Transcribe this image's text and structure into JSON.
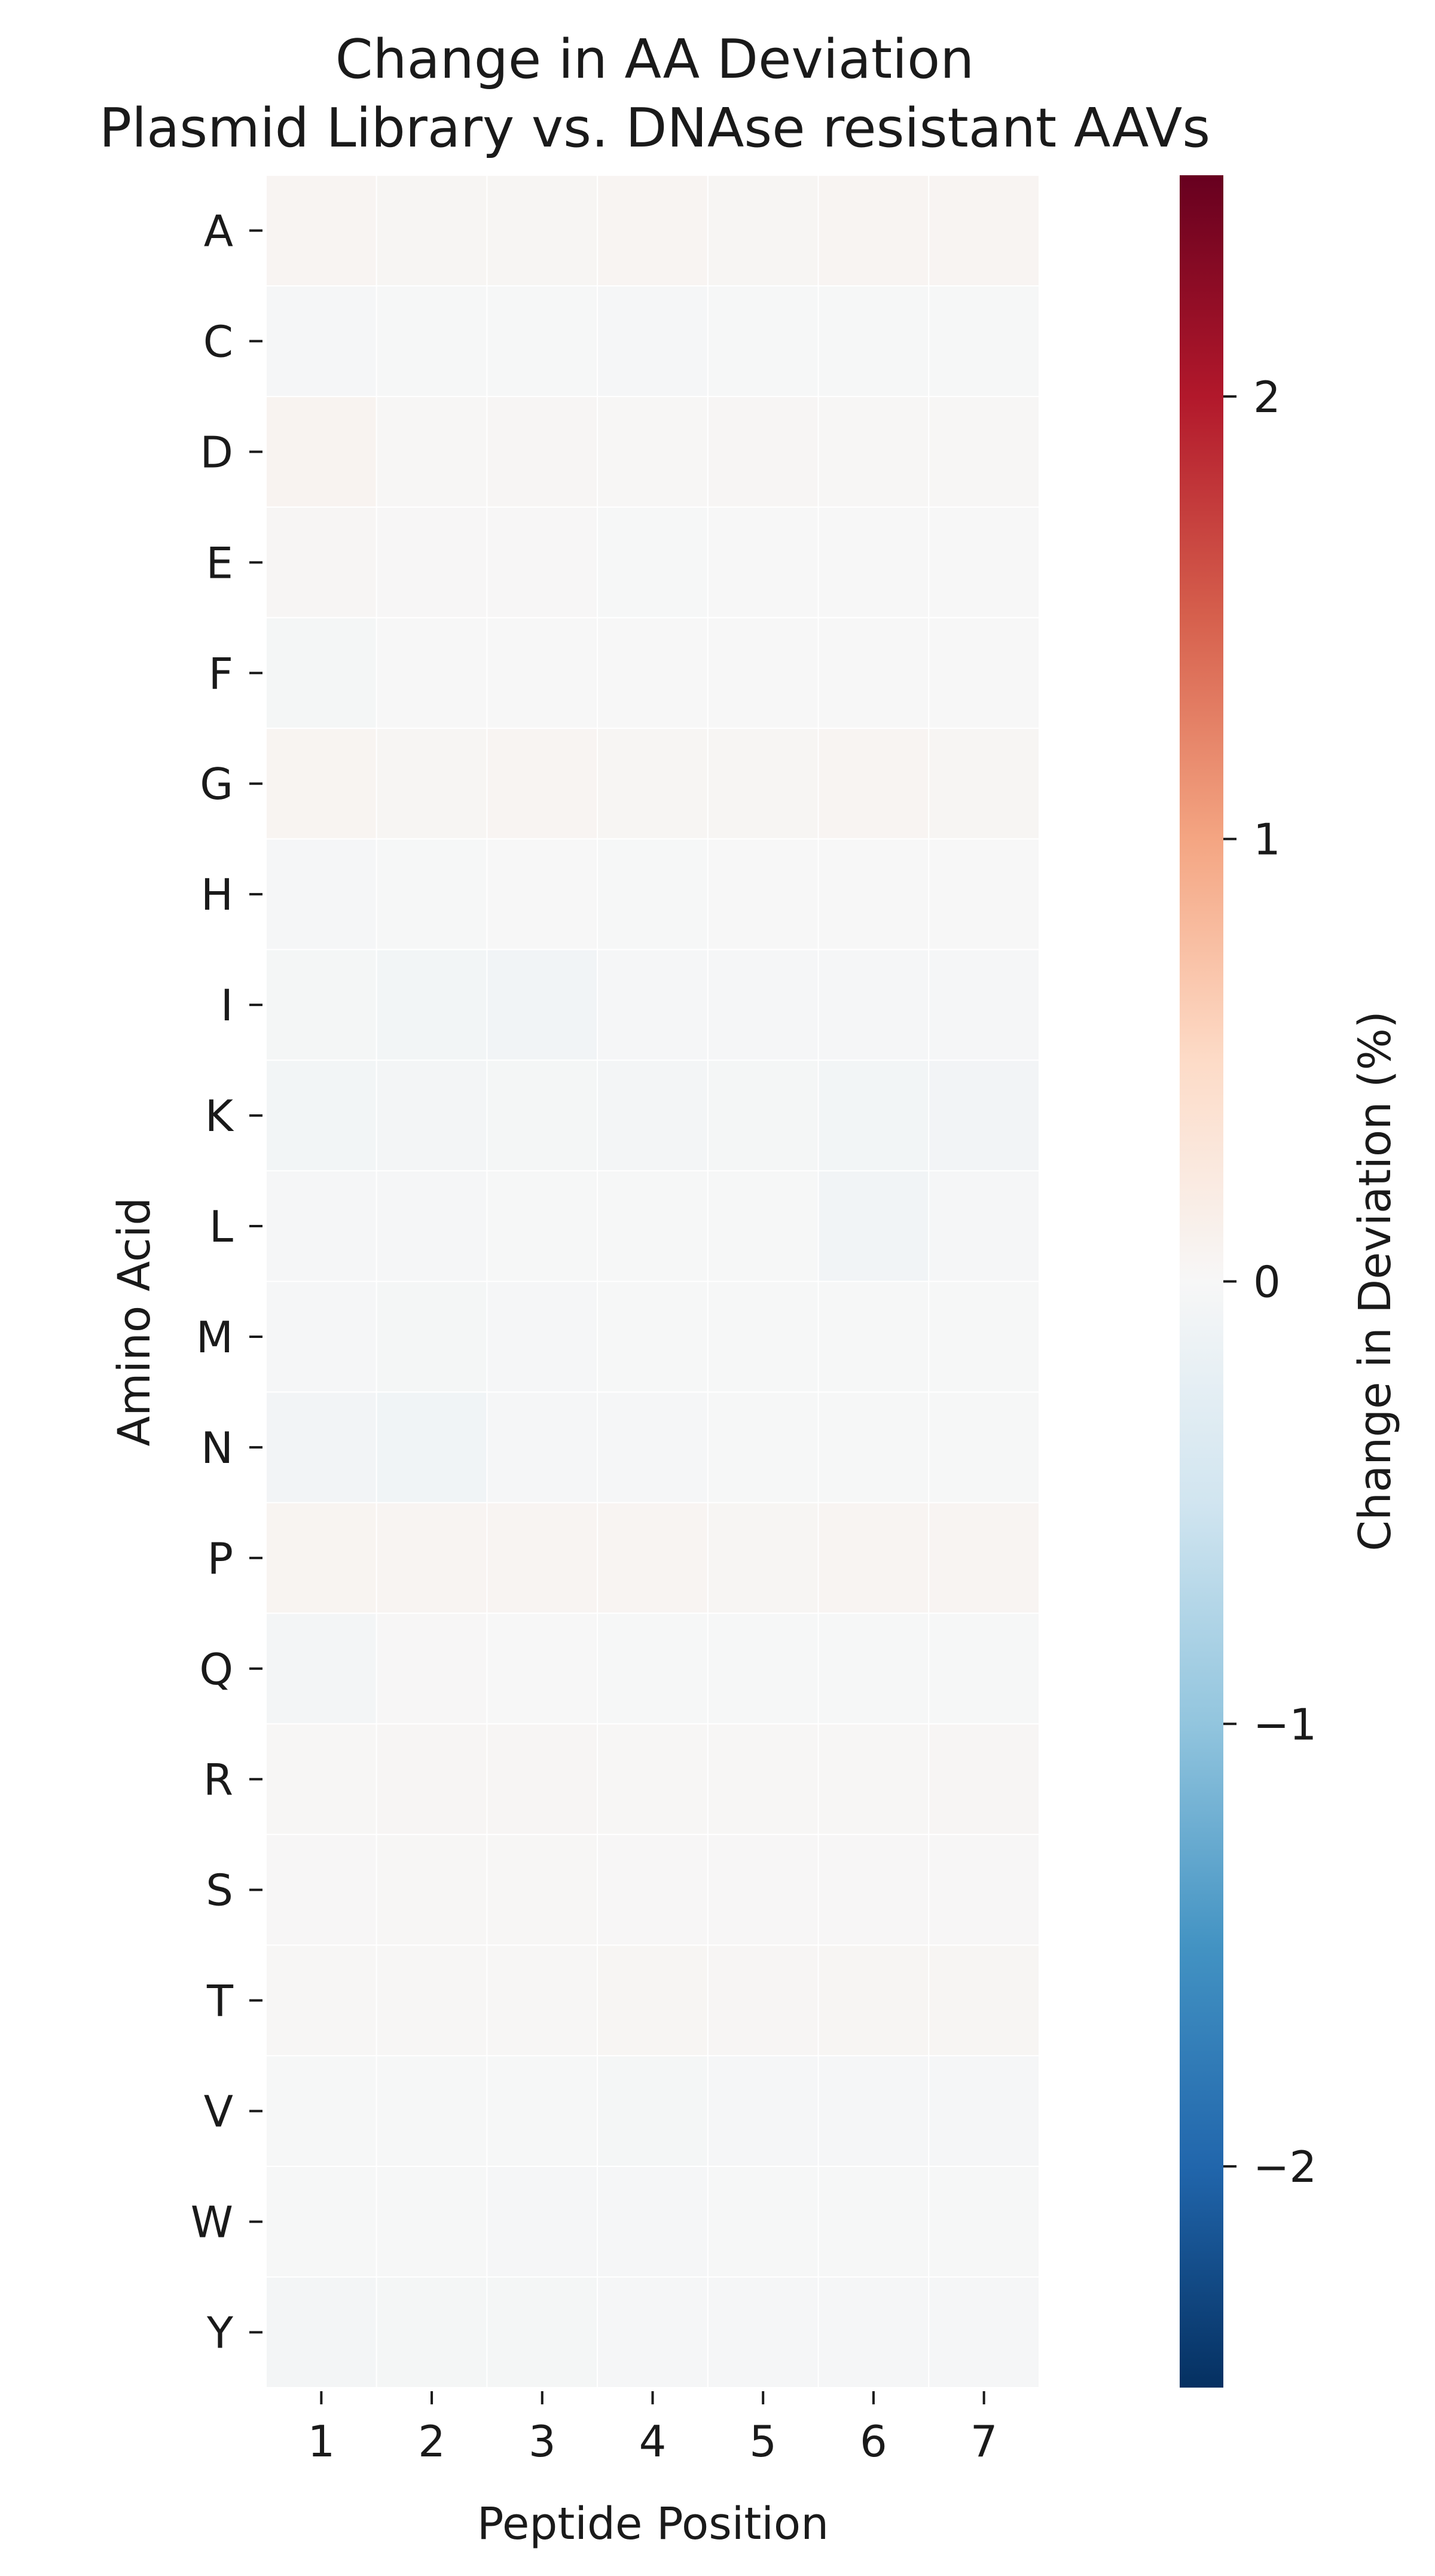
{
  "chart_data": {
    "type": "heatmap",
    "title_lines": [
      "Change in AA Deviation",
      "Plasmid Library vs. DNAse resistant AAVs"
    ],
    "xlabel": "Peptide Position",
    "ylabel": "Amino Acid",
    "x_categories": [
      "1",
      "2",
      "3",
      "4",
      "5",
      "6",
      "7"
    ],
    "y_categories": [
      "A",
      "C",
      "D",
      "E",
      "F",
      "G",
      "H",
      "I",
      "K",
      "L",
      "M",
      "N",
      "P",
      "Q",
      "R",
      "S",
      "T",
      "V",
      "W",
      "Y"
    ],
    "values": [
      [
        0.05,
        0.04,
        0.04,
        0.05,
        0.04,
        0.05,
        0.05
      ],
      [
        -0.02,
        -0.01,
        -0.01,
        -0.02,
        -0.01,
        -0.01,
        -0.01
      ],
      [
        0.07,
        0.02,
        0.03,
        0.02,
        0.03,
        0.02,
        0.02
      ],
      [
        0.03,
        0.01,
        0.01,
        -0.01,
        0.0,
        0.0,
        0.0
      ],
      [
        -0.04,
        0.0,
        0.0,
        0.0,
        0.0,
        0.0,
        0.0
      ],
      [
        0.06,
        0.04,
        0.05,
        0.04,
        0.04,
        0.05,
        0.04
      ],
      [
        -0.02,
        -0.01,
        0.0,
        -0.01,
        0.0,
        0.0,
        0.0
      ],
      [
        -0.04,
        -0.06,
        -0.08,
        -0.02,
        -0.03,
        -0.02,
        -0.02
      ],
      [
        -0.06,
        -0.05,
        -0.04,
        -0.05,
        -0.04,
        -0.06,
        -0.07
      ],
      [
        -0.02,
        -0.02,
        -0.01,
        -0.01,
        -0.01,
        -0.08,
        -0.02
      ],
      [
        -0.02,
        -0.04,
        -0.03,
        -0.01,
        -0.01,
        -0.01,
        -0.01
      ],
      [
        -0.07,
        -0.09,
        -0.02,
        -0.02,
        -0.01,
        -0.01,
        -0.01
      ],
      [
        0.06,
        0.05,
        0.05,
        0.05,
        0.04,
        0.05,
        0.05
      ],
      [
        -0.05,
        0.01,
        0.0,
        -0.01,
        -0.01,
        -0.01,
        -0.01
      ],
      [
        0.02,
        0.03,
        0.03,
        0.02,
        0.02,
        0.02,
        0.03
      ],
      [
        0.01,
        0.02,
        0.02,
        0.01,
        0.01,
        0.01,
        0.01
      ],
      [
        0.02,
        0.02,
        0.02,
        0.04,
        0.03,
        0.04,
        0.04
      ],
      [
        -0.01,
        -0.01,
        -0.01,
        -0.04,
        -0.02,
        -0.02,
        -0.03
      ],
      [
        -0.01,
        -0.01,
        -0.02,
        -0.03,
        -0.01,
        -0.01,
        -0.01
      ],
      [
        -0.05,
        -0.04,
        -0.04,
        -0.03,
        -0.03,
        -0.03,
        -0.03
      ]
    ],
    "colorbar": {
      "label": "Change in Deviation (%)",
      "range": [
        -2.5,
        2.5
      ],
      "ticks": [
        -2,
        -1,
        0,
        1,
        2
      ],
      "tick_labels": [
        "−2",
        "−1",
        "0",
        "1",
        "2"
      ],
      "colormap": "RdBu_r",
      "colors_low_to_high": [
        "#053061",
        "#2166ac",
        "#4393c3",
        "#92c5de",
        "#d1e5f0",
        "#f7f7f7",
        "#fddbc7",
        "#f4a582",
        "#d6604d",
        "#b2182b",
        "#67001f"
      ]
    },
    "grid": false,
    "legend": "colorbar-right"
  }
}
